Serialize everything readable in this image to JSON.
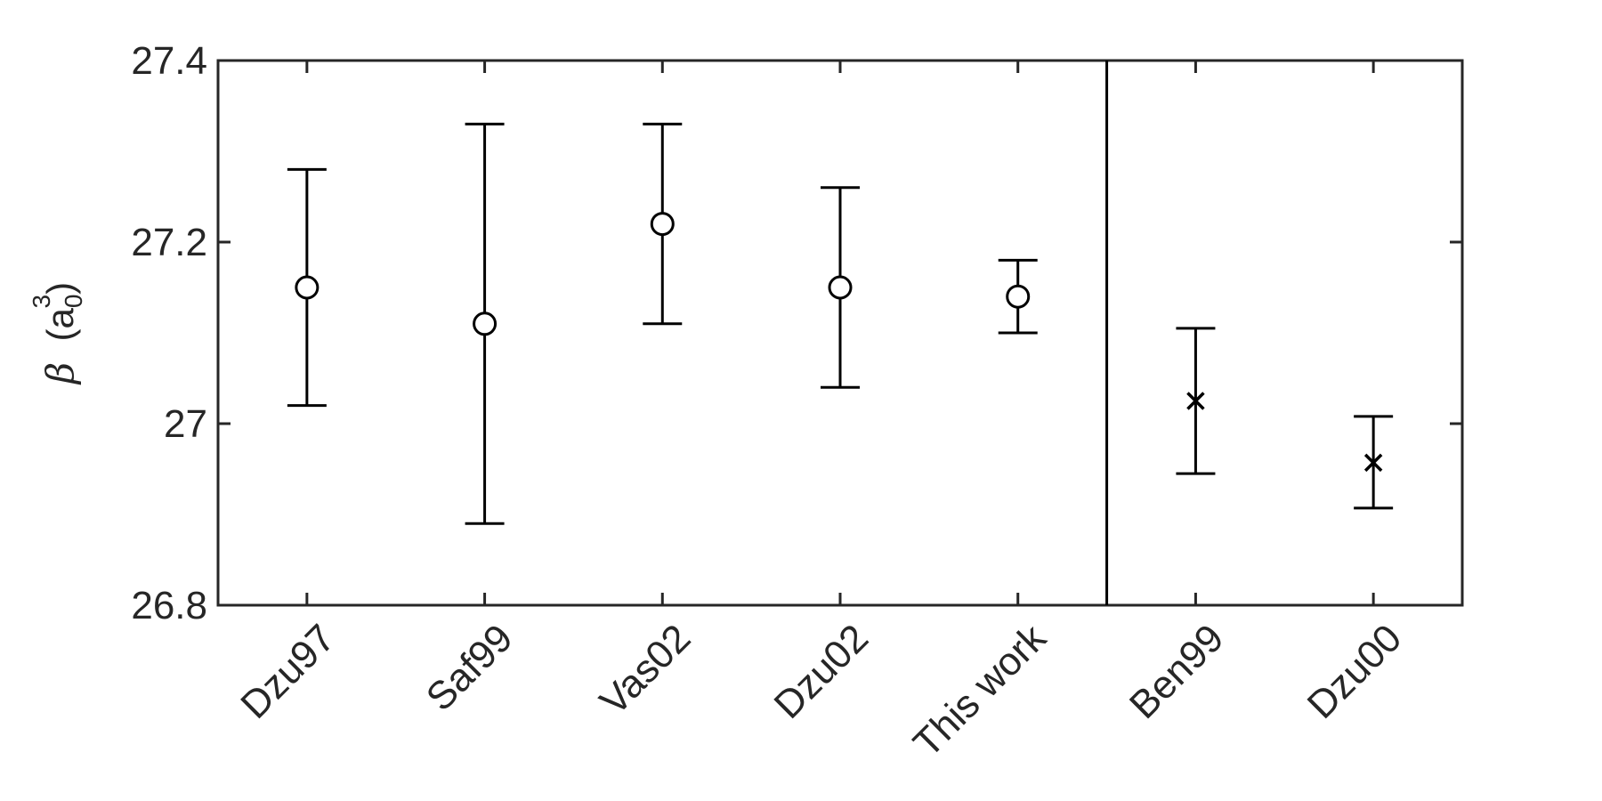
{
  "chart_data": {
    "type": "scatter",
    "title": "",
    "xlabel": "",
    "ylabel": {
      "symbol": "β",
      "open": "(",
      "base": "a",
      "sub": "0",
      "sup": "3",
      "close": ")"
    },
    "ylim": [
      26.8,
      27.4
    ],
    "yticks": [
      {
        "value": 26.8,
        "label": "26.8"
      },
      {
        "value": 27.0,
        "label": "27"
      },
      {
        "value": 27.2,
        "label": "27.2"
      },
      {
        "value": 27.4,
        "label": "27.4"
      }
    ],
    "categories": [
      "Dzu97",
      "Saf99",
      "Vas02",
      "Dzu02",
      "This work",
      "Ben99",
      "Dzu00"
    ],
    "separator_after_index": 4,
    "points": [
      {
        "label": "Dzu97",
        "y": 27.15,
        "lower": 27.02,
        "upper": 27.28,
        "marker": "circle"
      },
      {
        "label": "Saf99",
        "y": 27.11,
        "lower": 26.89,
        "upper": 27.33,
        "marker": "circle"
      },
      {
        "label": "Vas02",
        "y": 27.22,
        "lower": 27.11,
        "upper": 27.33,
        "marker": "circle"
      },
      {
        "label": "Dzu02",
        "y": 27.15,
        "lower": 27.04,
        "upper": 27.26,
        "marker": "circle"
      },
      {
        "label": "This work",
        "y": 27.14,
        "lower": 27.1,
        "upper": 27.18,
        "marker": "circle"
      },
      {
        "label": "Ben99",
        "y": 27.025,
        "lower": 26.945,
        "upper": 27.105,
        "marker": "cross"
      },
      {
        "label": "Dzu00",
        "y": 26.957,
        "lower": 26.907,
        "upper": 27.008,
        "marker": "cross"
      }
    ],
    "grid": false,
    "colors": {
      "line": "#000000",
      "text": "#262626",
      "axis": "#262626"
    }
  }
}
